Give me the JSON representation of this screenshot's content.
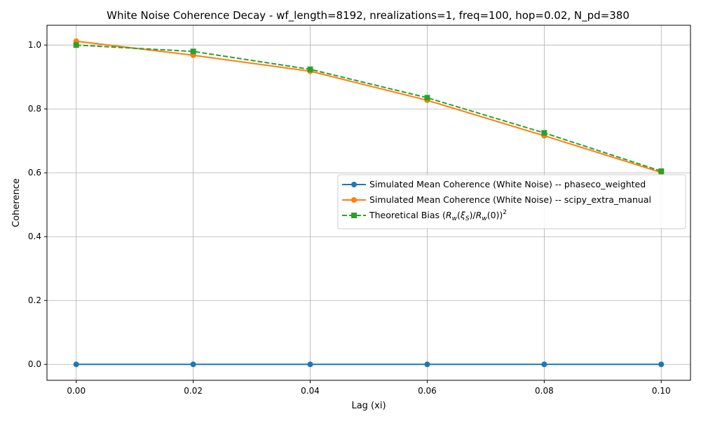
{
  "chart_data": {
    "type": "line",
    "title": "White Noise Coherence Decay - wf_length=8192, nrealizations=1, freq=100, hop=0.02, N_pd=380",
    "xlabel": "Lag (xi)",
    "ylabel": "Coherence",
    "x": [
      0.0,
      0.02,
      0.04,
      0.06,
      0.08,
      0.1
    ],
    "xlim": [
      -0.005,
      0.105
    ],
    "ylim": [
      -0.05,
      1.062
    ],
    "xticks": [
      "0.00",
      "0.02",
      "0.04",
      "0.06",
      "0.08",
      "0.10"
    ],
    "yticks": [
      "0.0",
      "0.2",
      "0.4",
      "0.6",
      "0.8",
      "1.0"
    ],
    "grid": true,
    "legend_position": "center-right",
    "series": [
      {
        "name": "Simulated Mean Coherence (White Noise) -- phaseco_weighted",
        "values": [
          0.0,
          0.0,
          0.0,
          0.0,
          0.0,
          0.0
        ],
        "color": "#1f77b4",
        "marker": "circle",
        "linestyle": "solid"
      },
      {
        "name": "Simulated Mean Coherence (White Noise) -- scipy_extra_manual",
        "values": [
          1.012,
          0.968,
          0.918,
          0.827,
          0.716,
          0.601
        ],
        "color": "#ff7f0e",
        "marker": "circle",
        "linestyle": "solid"
      },
      {
        "name": "Theoretical Bias",
        "values": [
          1.0,
          0.98,
          0.924,
          0.835,
          0.725,
          0.605
        ],
        "color": "#2ca02c",
        "marker": "square",
        "linestyle": "dashed"
      }
    ]
  }
}
